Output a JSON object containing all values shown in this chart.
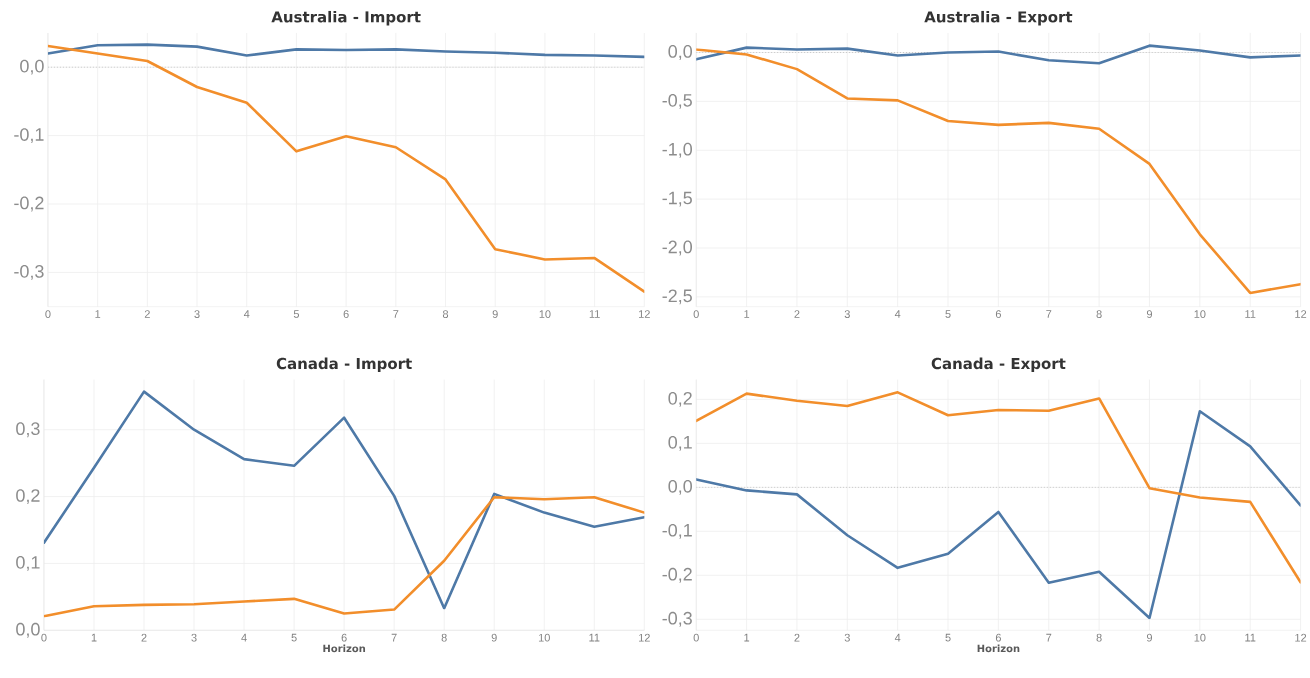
{
  "chart_data": [
    {
      "type": "line",
      "title": "Australia - Import",
      "x": [
        0,
        1,
        2,
        3,
        4,
        5,
        6,
        7,
        8,
        9,
        10,
        11,
        12
      ],
      "xlim": [
        0,
        12
      ],
      "xticks": [
        0,
        1,
        2,
        3,
        4,
        5,
        6,
        7,
        8,
        9,
        10,
        11,
        12
      ],
      "ylim": [
        -0.35,
        0.05
      ],
      "yticks": [
        {
          "value": 0,
          "label": "0,0"
        },
        {
          "value": -0.1,
          "label": "-0,1"
        },
        {
          "value": -0.2,
          "label": "-0,2"
        },
        {
          "value": -0.3,
          "label": "-0,3"
        }
      ],
      "grid": true,
      "ref_lines": [
        {
          "axis": "y",
          "value": 0,
          "color": "#c8c8c8",
          "line_style": "dotted"
        }
      ],
      "series": [
        {
          "color": "#4e79a7",
          "values": [
            0.02,
            0.032,
            0.033,
            0.03,
            0.017,
            0.026,
            0.025,
            0.026,
            0.023,
            0.021,
            0.018,
            0.017,
            0.015
          ]
        },
        {
          "color": "#f28e2b",
          "values": [
            0.031,
            0.02,
            0.009,
            -0.029,
            -0.052,
            -0.123,
            -0.101,
            -0.117,
            -0.164,
            -0.266,
            -0.281,
            -0.279,
            -0.328
          ]
        }
      ]
    },
    {
      "type": "line",
      "title": "Australia - Export",
      "x": [
        0,
        1,
        2,
        3,
        4,
        5,
        6,
        7,
        8,
        9,
        10,
        11,
        12
      ],
      "xlim": [
        0,
        12
      ],
      "xticks": [
        0,
        1,
        2,
        3,
        4,
        5,
        6,
        7,
        8,
        9,
        10,
        11,
        12
      ],
      "ylim": [
        -2.6,
        0.2
      ],
      "yticks": [
        {
          "value": 0,
          "label": "0,0"
        },
        {
          "value": -0.5,
          "label": "-0,5"
        },
        {
          "value": -1,
          "label": "-1,0"
        },
        {
          "value": -1.5,
          "label": "-1,5"
        },
        {
          "value": -2,
          "label": "-2,0"
        },
        {
          "value": -2.5,
          "label": "-2,5"
        }
      ],
      "grid": true,
      "ref_lines": [
        {
          "axis": "y",
          "value": 0,
          "color": "#c8c8c8",
          "line_style": "dotted"
        }
      ],
      "series": [
        {
          "color": "#4e79a7",
          "values": [
            -0.07,
            0.05,
            0.03,
            0.04,
            -0.03,
            0.0,
            0.01,
            -0.08,
            -0.11,
            0.07,
            0.02,
            -0.05,
            -0.03
          ]
        },
        {
          "color": "#f28e2b",
          "values": [
            0.03,
            -0.02,
            -0.17,
            -0.47,
            -0.49,
            -0.7,
            -0.74,
            -0.72,
            -0.78,
            -1.14,
            -1.86,
            -2.46,
            -2.37
          ]
        }
      ]
    },
    {
      "type": "line",
      "title": "Canada - Import",
      "xlabel": "Horizon",
      "x": [
        0,
        1,
        2,
        3,
        4,
        5,
        6,
        7,
        8,
        9,
        10,
        11,
        12
      ],
      "xlim": [
        0,
        12
      ],
      "xticks": [
        0,
        1,
        2,
        3,
        4,
        5,
        6,
        7,
        8,
        9,
        10,
        11,
        12
      ],
      "ylim": [
        0,
        0.375
      ],
      "yticks": [
        {
          "value": 0,
          "label": "0,0"
        },
        {
          "value": 0.1,
          "label": "0,1"
        },
        {
          "value": 0.2,
          "label": "0,2"
        },
        {
          "value": 0.3,
          "label": "0,3"
        }
      ],
      "grid": true,
      "series": [
        {
          "color": "#4e79a7",
          "values": [
            0.131,
            0.243,
            0.357,
            0.3,
            0.256,
            0.246,
            0.318,
            0.201,
            0.033,
            0.204,
            0.176,
            0.155,
            0.169
          ]
        },
        {
          "color": "#f28e2b",
          "values": [
            0.021,
            0.036,
            0.038,
            0.039,
            0.043,
            0.047,
            0.025,
            0.031,
            0.104,
            0.199,
            0.196,
            0.199,
            0.176
          ]
        }
      ]
    },
    {
      "type": "line",
      "title": "Canada - Export",
      "xlabel": "Horizon",
      "x": [
        0,
        1,
        2,
        3,
        4,
        5,
        6,
        7,
        8,
        9,
        10,
        11,
        12
      ],
      "xlim": [
        0,
        12
      ],
      "xticks": [
        0,
        1,
        2,
        3,
        4,
        5,
        6,
        7,
        8,
        9,
        10,
        11,
        12
      ],
      "ylim": [
        -0.325,
        0.245
      ],
      "yticks": [
        {
          "value": 0.2,
          "label": "0,2"
        },
        {
          "value": 0.1,
          "label": "0,1"
        },
        {
          "value": 0,
          "label": "0,0"
        },
        {
          "value": -0.1,
          "label": "-0,1"
        },
        {
          "value": -0.2,
          "label": "-0,2"
        },
        {
          "value": -0.3,
          "label": "-0,3"
        }
      ],
      "grid": true,
      "ref_lines": [
        {
          "axis": "y",
          "value": 0,
          "color": "#c8c8c8",
          "line_style": "dotted"
        }
      ],
      "series": [
        {
          "color": "#4e79a7",
          "values": [
            0.018,
            -0.007,
            -0.016,
            -0.109,
            -0.183,
            -0.151,
            -0.056,
            -0.217,
            -0.192,
            -0.297,
            0.173,
            0.093,
            -0.041
          ]
        },
        {
          "color": "#f28e2b",
          "values": [
            0.151,
            0.213,
            0.197,
            0.185,
            0.216,
            0.164,
            0.176,
            0.174,
            0.202,
            -0.002,
            -0.023,
            -0.033,
            -0.216
          ]
        }
      ]
    }
  ]
}
